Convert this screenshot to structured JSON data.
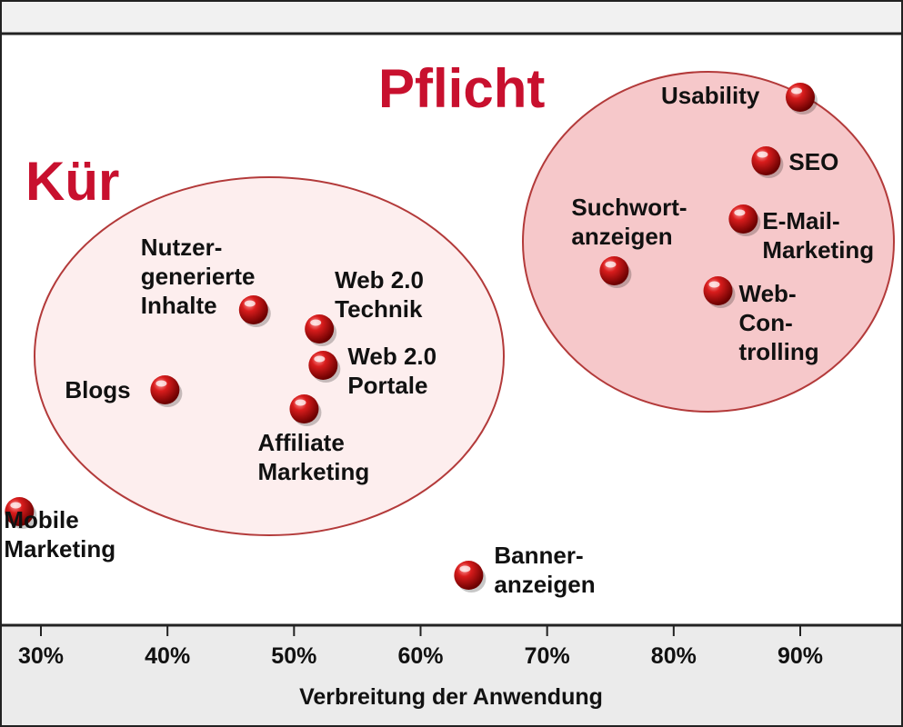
{
  "chart_data": {
    "type": "scatter",
    "title": "",
    "xlabel": "Verbreitung der Anwendung",
    "ylabel": "",
    "x_ticks": [
      "30%",
      "40%",
      "50%",
      "60%",
      "70%",
      "80%",
      "90%"
    ],
    "xlim": [
      27,
      98
    ],
    "grid": false,
    "groups": [
      {
        "name": "Kür",
        "members": [
          "Nutzergenerierte Inhalte",
          "Web 2.0 Technik",
          "Web 2.0 Portale",
          "Blogs",
          "Affiliate Marketing"
        ]
      },
      {
        "name": "Pflicht",
        "members": [
          "Usability",
          "SEO",
          "Suchwortanzeigen",
          "E-Mail-Marketing",
          "Web-Controlling"
        ]
      }
    ],
    "points": [
      {
        "id": "usability",
        "lines": [
          "Usability"
        ],
        "x": 90
      },
      {
        "id": "seo",
        "lines": [
          "SEO"
        ],
        "x": 87.3
      },
      {
        "id": "suchwortanzeigen",
        "lines": [
          "Suchwort-",
          "anzeigen"
        ],
        "x": 75.3
      },
      {
        "id": "email-marketing",
        "lines": [
          "E-Mail-",
          "Marketing"
        ],
        "x": 85.5
      },
      {
        "id": "web-controlling",
        "lines": [
          "Web-",
          "Con-",
          "trolling"
        ],
        "x": 83.5
      },
      {
        "id": "nutzergenerierte-inhalte",
        "lines": [
          "Nutzer-",
          "generierte",
          "Inhalte"
        ],
        "x": 46.8
      },
      {
        "id": "web20-technik",
        "lines": [
          "Web 2.0",
          "Technik"
        ],
        "x": 52
      },
      {
        "id": "web20-portale",
        "lines": [
          "Web 2.0",
          "Portale"
        ],
        "x": 52.3
      },
      {
        "id": "blogs",
        "lines": [
          "Blogs"
        ],
        "x": 39.8
      },
      {
        "id": "affiliate-marketing",
        "lines": [
          "Affiliate",
          "Marketing"
        ],
        "x": 50.8
      },
      {
        "id": "mobile-marketing",
        "lines": [
          "Mobile",
          "Marketing"
        ],
        "x": 28.3
      },
      {
        "id": "banneranzeigen",
        "lines": [
          "Banner-",
          "anzeigen"
        ],
        "x": 63.8
      }
    ]
  }
}
